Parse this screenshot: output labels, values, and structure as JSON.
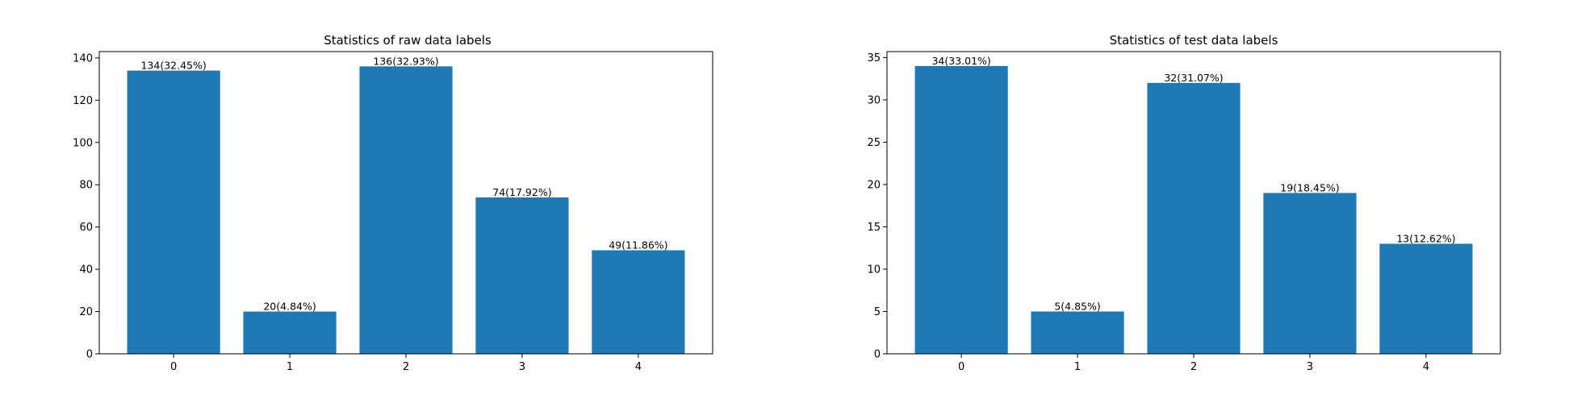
{
  "chart_data": [
    {
      "type": "bar",
      "title": "Statistics of raw data labels",
      "xlabel": "",
      "ylabel": "",
      "categories": [
        "0",
        "1",
        "2",
        "3",
        "4"
      ],
      "values": [
        134,
        20,
        136,
        74,
        49
      ],
      "data_labels": [
        "134(32.45%)",
        "20(4.84%)",
        "136(32.93%)",
        "74(17.92%)",
        "49(11.86%)"
      ],
      "ylim": [
        0,
        143
      ],
      "yticks": [
        0,
        20,
        40,
        60,
        80,
        100,
        120,
        140
      ],
      "grid": false,
      "bar_color": "#1f77b4"
    },
    {
      "type": "bar",
      "title": "Statistics of test data labels",
      "xlabel": "",
      "ylabel": "",
      "categories": [
        "0",
        "1",
        "2",
        "3",
        "4"
      ],
      "values": [
        34,
        5,
        32,
        19,
        13
      ],
      "data_labels": [
        "34(33.01%)",
        "5(4.85%)",
        "32(31.07%)",
        "19(18.45%)",
        "13(12.62%)"
      ],
      "ylim": [
        0,
        35.7
      ],
      "yticks": [
        0,
        5,
        10,
        15,
        20,
        25,
        30,
        35
      ],
      "grid": false,
      "bar_color": "#1f77b4"
    }
  ]
}
